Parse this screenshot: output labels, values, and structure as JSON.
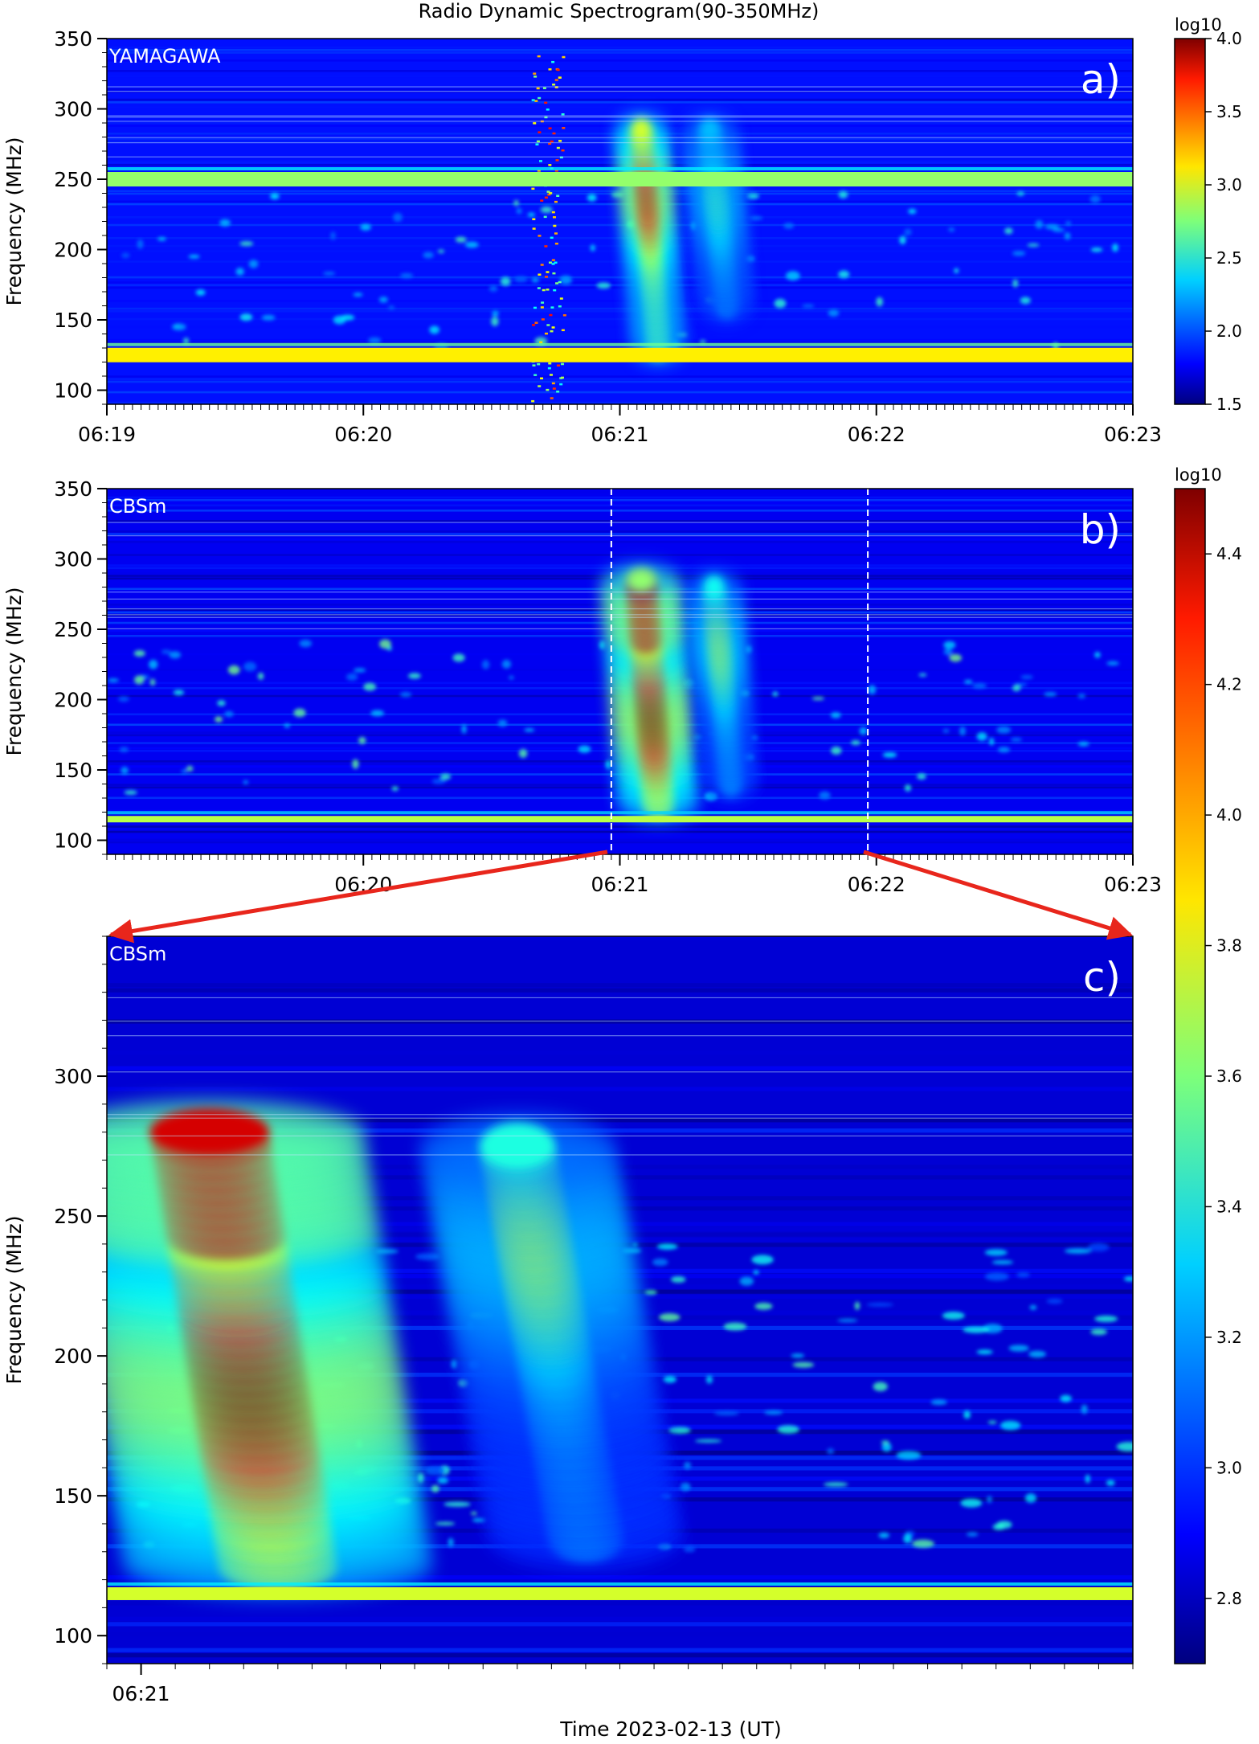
{
  "figure": {
    "title": "Radio Dynamic Spectrogram(90-350MHz)",
    "xlabel": "Time 2023-02-13 (UT)"
  },
  "colors": {
    "colormap": "jet",
    "annotation_arrow": "#e8261c",
    "marker_lines": "#ffffff"
  },
  "chart_data": [
    {
      "type": "heatmap",
      "panel_label": "a)",
      "station": "YAMAGAWA",
      "ylabel": "Frequency (MHz)",
      "xlabel": "",
      "xlim": [
        "06:19",
        "06:23"
      ],
      "ylim": [
        90,
        350
      ],
      "x_ticks": [
        "06:19",
        "06:20",
        "06:21",
        "06:22",
        "06:23"
      ],
      "y_ticks": [
        100,
        150,
        200,
        250,
        300,
        350
      ],
      "colorbar": {
        "label": "log10",
        "range": [
          1.5,
          4.0
        ],
        "ticks": [
          "1.5",
          "2.0",
          "2.5",
          "3.0",
          "3.5",
          "4.0"
        ]
      },
      "background_level": 1.85,
      "features": [
        {
          "kind": "burst_lane",
          "time": "06:21:07",
          "freq_range": [
            130,
            285
          ],
          "peak": 3.8
        },
        {
          "kind": "burst_lane",
          "time": "06:21:23",
          "freq_range": [
            160,
            285
          ],
          "peak": 2.6
        },
        {
          "kind": "impulsive_interference",
          "time": "06:20:43",
          "freq_range": [
            90,
            345
          ],
          "peak": 3.7
        },
        {
          "kind": "constant_band",
          "freq": 125,
          "level": 3.1
        },
        {
          "kind": "constant_band",
          "freq": 250,
          "level": 2.8
        }
      ]
    },
    {
      "type": "heatmap",
      "panel_label": "b)",
      "station": "CBSm",
      "ylabel": "Frequency (MHz)",
      "xlabel": "",
      "xlim": [
        "06:19",
        "06:23"
      ],
      "ylim": [
        90,
        350
      ],
      "x_ticks": [
        "06:20",
        "06:21",
        "06:22",
        "06:23"
      ],
      "y_ticks": [
        100,
        150,
        200,
        250,
        300,
        350
      ],
      "colorbar": {
        "label": "log10",
        "range": [
          2.7,
          4.5
        ],
        "ticks": [
          "2.8",
          "3.0",
          "3.2",
          "3.4",
          "3.6",
          "3.8",
          "4.0",
          "4.2",
          "4.4"
        ]
      },
      "background_level": 2.9,
      "zoom_window": [
        "06:20:58",
        "06:21:58"
      ],
      "features": [
        {
          "kind": "burst_lane",
          "time": "06:21:07",
          "freq_range": [
            125,
            285
          ],
          "peak": 4.5
        },
        {
          "kind": "burst_lane",
          "time": "06:21:24",
          "freq_range": [
            140,
            280
          ],
          "peak": 3.7
        },
        {
          "kind": "constant_band",
          "freq": 115,
          "level": 3.7
        }
      ]
    },
    {
      "type": "heatmap",
      "panel_label": "c)",
      "station": "CBSm",
      "ylabel": "Frequency (MHz)",
      "xlabel": "Time 2023-02-13 (UT)",
      "xlim": [
        "06:20:58",
        "06:21:58"
      ],
      "ylim": [
        90,
        350
      ],
      "x_ticks": [
        "06:21"
      ],
      "y_ticks": [
        100,
        150,
        200,
        250,
        300
      ],
      "colorbar": {
        "label": "log10",
        "range": [
          2.7,
          4.5
        ],
        "ticks": [
          "2.8",
          "3.0",
          "3.2",
          "3.4",
          "3.6",
          "3.8",
          "4.0",
          "4.2",
          "4.4"
        ]
      },
      "background_level": 2.85,
      "features": [
        {
          "kind": "burst_lane",
          "time": "06:21:06",
          "freq_range": [
            125,
            280
          ],
          "peak": 4.5
        },
        {
          "kind": "burst_lane",
          "time": "06:21:24",
          "freq_range": [
            135,
            275
          ],
          "peak": 3.7
        },
        {
          "kind": "constant_band",
          "freq": 115,
          "level": 3.75
        }
      ]
    }
  ]
}
